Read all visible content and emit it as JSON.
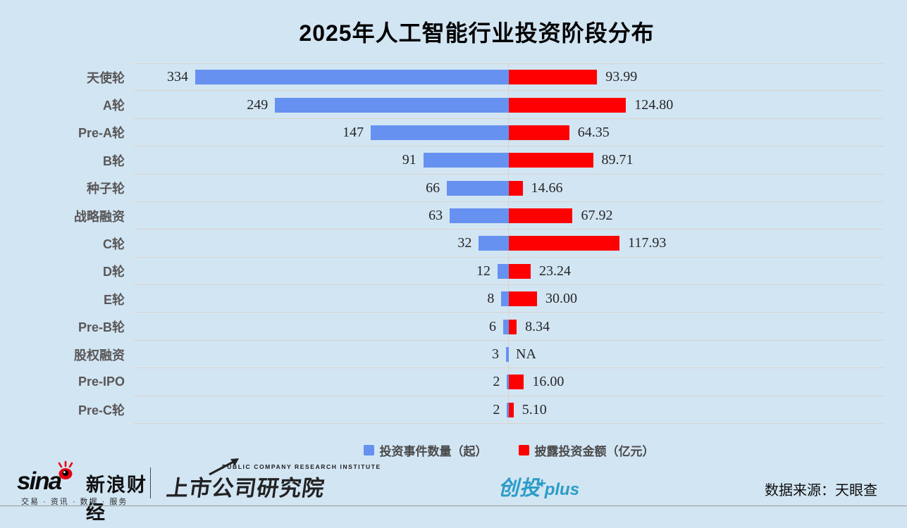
{
  "title": "2025年人工智能行业投资阶段分布",
  "chart_data": {
    "type": "bar",
    "orientation": "bidirectional-horizontal",
    "title": "2025年人工智能行业投资阶段分布",
    "categories": [
      "天使轮",
      "A轮",
      "Pre-A轮",
      "B轮",
      "种子轮",
      "战略融资",
      "C轮",
      "D轮",
      "E轮",
      "Pre-B轮",
      "股权融资",
      "Pre-IPO",
      "Pre-C轮"
    ],
    "series": [
      {
        "name": "投资事件数量（起）",
        "direction": "left",
        "color": "#6691f0",
        "values": [
          334,
          249,
          147,
          91,
          66,
          63,
          32,
          12,
          8,
          6,
          3,
          2,
          2
        ]
      },
      {
        "name": "披露投资金额（亿元）",
        "direction": "right",
        "color": "#ff0000",
        "values": [
          93.99,
          124.8,
          64.35,
          89.71,
          14.66,
          67.92,
          117.93,
          23.24,
          30.0,
          8.34,
          null,
          16.0,
          5.1
        ],
        "labels": [
          "93.99",
          "124.80",
          "64.35",
          "89.71",
          "14.66",
          "67.92",
          "117.93",
          "23.24",
          "30.00",
          "8.34",
          "NA",
          "16.00",
          "5.10"
        ]
      }
    ],
    "grid": true,
    "legend_position": "bottom",
    "axis_note": "single shared linear scale for both directions, center at 0"
  },
  "legend": {
    "events_label": "投资事件数量（起）",
    "amount_label": "披露投资金额（亿元）"
  },
  "footer": {
    "sina_word": "sina",
    "sina_brand": "新浪财经",
    "sina_tagline": "交易 · 资讯 · 数据 · 服务",
    "institute_en": "PUBLIC COMPANY RESEARCH INSTITUTE",
    "institute_cn": "上市公司研究院",
    "product_cn": "创投",
    "product_plus": "+",
    "product_suffix": "plus",
    "source": "数据来源：天眼查"
  },
  "colors": {
    "background": "#d2e5f3",
    "bar_blue": "#6691f0",
    "bar_red": "#ff0000",
    "gridline": "#d9d3cd",
    "category_label": "#595757",
    "value_label": "#262626",
    "product_cyan": "#2b9cc8"
  }
}
